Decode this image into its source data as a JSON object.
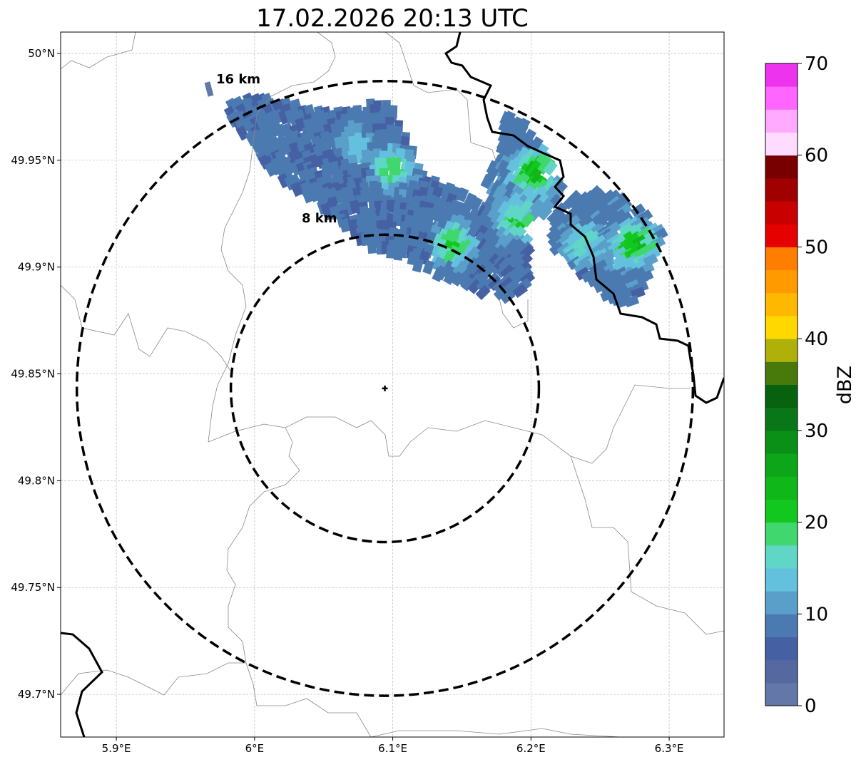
{
  "chart_data": {
    "type": "heatmap",
    "title": "17.02.2026 20:13 UTC",
    "xlim": [
      5.8597,
      6.3397
    ],
    "ylim": [
      49.68,
      50.01
    ],
    "x_ticks": [
      5.9,
      6.0,
      6.1,
      6.2,
      6.3
    ],
    "x_tick_labels": [
      "5.9°E",
      "6°E",
      "6.1°E",
      "6.2°E",
      "6.3°E"
    ],
    "y_ticks": [
      50.0,
      49.95,
      49.9,
      49.85,
      49.8,
      49.75,
      49.7
    ],
    "y_tick_labels": [
      "50°N",
      "49.95°N",
      "49.9°N",
      "49.85°N",
      "49.8°N",
      "49.75°N",
      "49.7°N"
    ],
    "grid": true,
    "radar_site": {
      "lon": 6.0943,
      "lat": 49.8432
    },
    "range_rings": [
      {
        "km": 8,
        "label": "8 km"
      },
      {
        "km": 16,
        "label": "16 km"
      }
    ],
    "colorbar": {
      "label": "dBZ",
      "min": 0,
      "max": 70,
      "step": 2.5,
      "ticks": [
        0,
        10,
        20,
        30,
        40,
        50,
        60,
        70
      ],
      "tick_labels": [
        "0",
        "10",
        "20",
        "30",
        "40",
        "50",
        "60",
        "70"
      ],
      "colors": [
        "#6477a9",
        "#5668a0",
        "#4660a4",
        "#4b7ab1",
        "#5a9fca",
        "#64c1dd",
        "#60d6c7",
        "#3fd76e",
        "#12c81f",
        "#10b718",
        "#0da618",
        "#0a8f17",
        "#097717",
        "#06620f",
        "#477a0a",
        "#b0b00a",
        "#ffd800",
        "#ffb800",
        "#ff9b00",
        "#ff7d00",
        "#e60000",
        "#c80000",
        "#a00000",
        "#780000",
        "#ffdcff",
        "#ffaaff",
        "#ff66ff",
        "#ee33ee"
      ]
    },
    "echo_regions": [
      {
        "name": "northwest-band",
        "base_dbz": 6,
        "polygon": [
          [
            5.9784,
            49.975
          ],
          [
            5.9965,
            49.9816
          ],
          [
            6.012,
            49.9783
          ],
          [
            6.0584,
            49.9716
          ],
          [
            6.0945,
            49.9783
          ],
          [
            6.1049,
            49.9683
          ],
          [
            6.1203,
            49.9449
          ],
          [
            6.1461,
            49.9349
          ],
          [
            6.1771,
            49.9283
          ],
          [
            6.1977,
            49.9149
          ],
          [
            6.2003,
            49.8916
          ],
          [
            6.1874,
            49.8849
          ],
          [
            6.1668,
            49.8865
          ],
          [
            6.1461,
            49.8932
          ],
          [
            6.1255,
            49.8982
          ],
          [
            6.1049,
            49.9049
          ],
          [
            6.0842,
            49.9082
          ],
          [
            6.0636,
            49.9182
          ],
          [
            6.043,
            49.9316
          ],
          [
            6.0223,
            49.9383
          ],
          [
            6.0068,
            49.9483
          ],
          [
            5.9913,
            49.9616
          ]
        ]
      },
      {
        "name": "northeast-cluster",
        "base_dbz": 7,
        "polygon": [
          [
            6.1771,
            49.97
          ],
          [
            6.1926,
            49.97
          ],
          [
            6.2081,
            49.955
          ],
          [
            6.2236,
            49.9349
          ],
          [
            6.2133,
            49.9249
          ],
          [
            6.1977,
            49.9216
          ],
          [
            6.1719,
            49.9283
          ],
          [
            6.1668,
            49.9416
          ],
          [
            6.1771,
            49.9516
          ]
        ]
      },
      {
        "name": "east-cluster",
        "base_dbz": 7,
        "polygon": [
          [
            6.2287,
            49.9333
          ],
          [
            6.2493,
            49.9356
          ],
          [
            6.2726,
            49.9299
          ],
          [
            6.2948,
            49.9166
          ],
          [
            6.2855,
            49.8966
          ],
          [
            6.2752,
            49.8815
          ],
          [
            6.2597,
            49.8832
          ],
          [
            6.2442,
            49.8932
          ],
          [
            6.2287,
            49.9016
          ],
          [
            6.2158,
            49.9099
          ],
          [
            6.2133,
            49.9216
          ]
        ]
      }
    ],
    "echo_cores": [
      {
        "lon": 6.0997,
        "lat": 49.945,
        "dbz": 19
      },
      {
        "lon": 6.0739,
        "lat": 49.955,
        "dbz": 14
      },
      {
        "lon": 6.2029,
        "lat": 49.9433,
        "dbz": 24
      },
      {
        "lon": 6.19,
        "lat": 49.9216,
        "dbz": 20
      },
      {
        "lon": 6.1435,
        "lat": 49.9099,
        "dbz": 21
      },
      {
        "lon": 6.239,
        "lat": 49.9099,
        "dbz": 17
      },
      {
        "lon": 6.2752,
        "lat": 49.9099,
        "dbz": 23
      }
    ]
  }
}
